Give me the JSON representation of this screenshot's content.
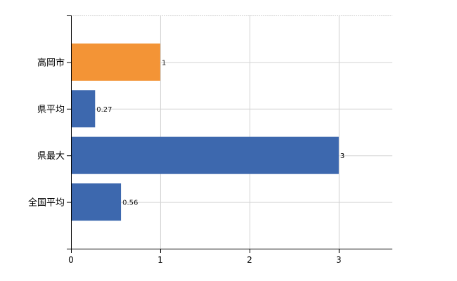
{
  "chart_data": {
    "type": "bar",
    "orientation": "horizontal",
    "title": "",
    "xlabel": "",
    "ylabel": "",
    "categories": [
      "高岡市",
      "県平均",
      "県最大",
      "全国平均"
    ],
    "values": [
      1,
      0.27,
      3,
      0.56
    ],
    "data_labels": [
      "1",
      "0.27",
      "3",
      "0.56"
    ],
    "bar_colors": [
      "#f39436",
      "#3d68ae",
      "#3d68ae",
      "#3d68ae"
    ],
    "xlim": [
      0,
      3.6
    ],
    "xticks": [
      0,
      1,
      2,
      3
    ],
    "xtick_labels": [
      "0",
      "1",
      "2",
      "3"
    ],
    "grid": true,
    "legend": "none"
  }
}
